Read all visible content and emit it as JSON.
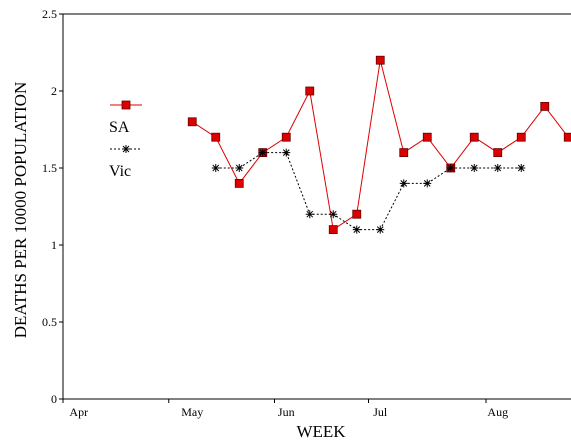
{
  "chart_data": {
    "type": "line",
    "x_label": "WEEK",
    "y_label": "DEATHS PER 10000 POPULATION",
    "categories": [
      "Apr",
      null,
      null,
      null,
      null,
      "May",
      null,
      null,
      null,
      "Jun",
      null,
      null,
      null,
      "Jul",
      null,
      null,
      null,
      null,
      "Aug",
      null,
      null,
      null
    ],
    "series": [
      {
        "name": "SA",
        "color": "#dd0000",
        "values": [
          null,
          null,
          null,
          null,
          null,
          1.8,
          1.7,
          1.4,
          1.6,
          1.7,
          2.0,
          1.1,
          1.2,
          2.2,
          1.6,
          1.7,
          1.5,
          1.7,
          1.6,
          1.7,
          1.9,
          1.7
        ]
      },
      {
        "name": "Vic",
        "color": "#000000",
        "values": [
          null,
          null,
          null,
          null,
          null,
          null,
          1.5,
          1.5,
          1.6,
          1.6,
          1.2,
          1.2,
          1.1,
          1.1,
          1.4,
          1.4,
          1.5,
          1.5,
          1.5,
          1.5,
          null,
          null
        ]
      }
    ],
    "ylim": [
      0,
      2.5
    ],
    "yticks": [
      0,
      0.5,
      1,
      1.5,
      2,
      2.5
    ]
  }
}
